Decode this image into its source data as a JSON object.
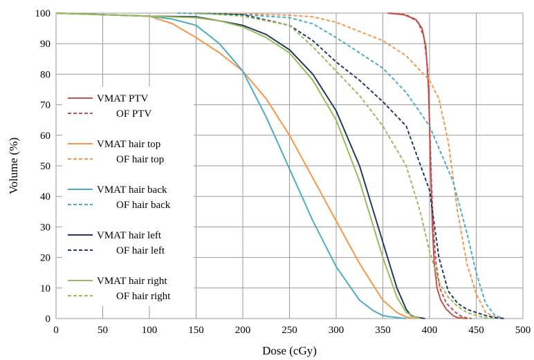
{
  "chart_data": {
    "type": "line",
    "title": "",
    "xlabel": "Dose (cGy)",
    "ylabel": "Volume (%)",
    "xlim": [
      0,
      500
    ],
    "ylim": [
      0,
      100
    ],
    "xticks": [
      0,
      50,
      100,
      150,
      200,
      250,
      300,
      350,
      400,
      450,
      500
    ],
    "yticks": [
      0,
      10,
      20,
      30,
      40,
      50,
      60,
      70,
      80,
      90,
      100
    ],
    "grid": true,
    "legend_position": "left-center",
    "series": [
      {
        "name": "VMAT PTV",
        "color": "#c0504d",
        "dash": "solid",
        "points": [
          [
            355,
            100
          ],
          [
            372,
            99.5
          ],
          [
            385,
            98
          ],
          [
            392,
            95
          ],
          [
            396,
            89
          ],
          [
            399,
            75
          ],
          [
            401,
            50
          ],
          [
            403,
            30
          ],
          [
            405,
            18
          ],
          [
            408,
            10
          ],
          [
            412,
            6
          ],
          [
            418,
            3
          ],
          [
            425,
            1
          ],
          [
            430,
            0.3
          ],
          [
            440,
            0
          ]
        ]
      },
      {
        "name": "OF PTV",
        "color": "#c0504d",
        "dash": "dashed",
        "points": [
          [
            358,
            100
          ],
          [
            375,
            99.5
          ],
          [
            388,
            97
          ],
          [
            394,
            92
          ],
          [
            398,
            82
          ],
          [
            400,
            65
          ],
          [
            402,
            45
          ],
          [
            404,
            30
          ],
          [
            407,
            18
          ],
          [
            411,
            10
          ],
          [
            418,
            5
          ],
          [
            428,
            2
          ],
          [
            435,
            0.5
          ],
          [
            445,
            0
          ]
        ]
      },
      {
        "name": "VMAT hair top",
        "color": "#f79646",
        "dash": "solid",
        "points": [
          [
            0,
            100
          ],
          [
            50,
            99.5
          ],
          [
            100,
            99
          ],
          [
            125,
            96.5
          ],
          [
            150,
            92
          ],
          [
            175,
            87
          ],
          [
            200,
            81
          ],
          [
            225,
            72
          ],
          [
            250,
            60
          ],
          [
            275,
            46
          ],
          [
            300,
            32
          ],
          [
            325,
            18
          ],
          [
            350,
            6
          ],
          [
            365,
            2
          ],
          [
            375,
            0.5
          ],
          [
            385,
            0
          ]
        ]
      },
      {
        "name": "OF hair top",
        "color": "#f79646",
        "dash": "dashed",
        "points": [
          [
            130,
            100
          ],
          [
            200,
            99.8
          ],
          [
            250,
            99.3
          ],
          [
            275,
            98.8
          ],
          [
            300,
            97
          ],
          [
            325,
            94
          ],
          [
            350,
            91
          ],
          [
            375,
            86
          ],
          [
            400,
            78
          ],
          [
            410,
            72
          ],
          [
            420,
            58
          ],
          [
            430,
            35
          ],
          [
            440,
            18
          ],
          [
            450,
            8
          ],
          [
            460,
            2
          ],
          [
            470,
            0.5
          ],
          [
            480,
            0
          ]
        ]
      },
      {
        "name": "VMAT hair back",
        "color": "#4bacc6",
        "dash": "solid",
        "points": [
          [
            0,
            100
          ],
          [
            50,
            99.5
          ],
          [
            100,
            99
          ],
          [
            125,
            98
          ],
          [
            150,
            96
          ],
          [
            175,
            90
          ],
          [
            200,
            81
          ],
          [
            225,
            66
          ],
          [
            250,
            49
          ],
          [
            275,
            32
          ],
          [
            300,
            17
          ],
          [
            325,
            6
          ],
          [
            340,
            2.5
          ],
          [
            350,
            1
          ],
          [
            360,
            0.5
          ],
          [
            375,
            0
          ]
        ]
      },
      {
        "name": "OF hair back",
        "color": "#4bacc6",
        "dash": "dashed",
        "points": [
          [
            130,
            100
          ],
          [
            200,
            99.5
          ],
          [
            250,
            98.5
          ],
          [
            275,
            96.5
          ],
          [
            300,
            92
          ],
          [
            325,
            87
          ],
          [
            350,
            82
          ],
          [
            375,
            74
          ],
          [
            400,
            63
          ],
          [
            425,
            45
          ],
          [
            440,
            28
          ],
          [
            450,
            15
          ],
          [
            460,
            5
          ],
          [
            470,
            1
          ],
          [
            480,
            0
          ]
        ]
      },
      {
        "name": "VMAT hair left",
        "color": "#1f3864",
        "dash": "solid",
        "points": [
          [
            0,
            100
          ],
          [
            50,
            99.5
          ],
          [
            100,
            99
          ],
          [
            150,
            98.8
          ],
          [
            175,
            97.5
          ],
          [
            200,
            96
          ],
          [
            225,
            93
          ],
          [
            250,
            88
          ],
          [
            275,
            80
          ],
          [
            300,
            68
          ],
          [
            325,
            50
          ],
          [
            350,
            25
          ],
          [
            365,
            10
          ],
          [
            375,
            3
          ],
          [
            380,
            1
          ],
          [
            385,
            0.5
          ],
          [
            395,
            0
          ]
        ]
      },
      {
        "name": "OF hair left",
        "color": "#1f3864",
        "dash": "dashed",
        "points": [
          [
            150,
            100
          ],
          [
            200,
            99.5
          ],
          [
            250,
            96
          ],
          [
            275,
            91
          ],
          [
            300,
            84
          ],
          [
            325,
            78
          ],
          [
            350,
            71
          ],
          [
            375,
            63
          ],
          [
            400,
            42
          ],
          [
            410,
            20
          ],
          [
            420,
            9
          ],
          [
            430,
            5
          ],
          [
            440,
            3
          ],
          [
            450,
            2
          ],
          [
            460,
            1
          ],
          [
            470,
            0.3
          ],
          [
            480,
            0
          ]
        ]
      },
      {
        "name": "VMAT hair right",
        "color": "#9bbb59",
        "dash": "solid",
        "points": [
          [
            0,
            100
          ],
          [
            50,
            99.5
          ],
          [
            100,
            99
          ],
          [
            150,
            98.5
          ],
          [
            175,
            97.5
          ],
          [
            200,
            95.5
          ],
          [
            225,
            92
          ],
          [
            250,
            87
          ],
          [
            275,
            78
          ],
          [
            300,
            65
          ],
          [
            325,
            45
          ],
          [
            350,
            20
          ],
          [
            365,
            7
          ],
          [
            375,
            2
          ],
          [
            385,
            0.5
          ],
          [
            390,
            0
          ]
        ]
      },
      {
        "name": "OF hair right",
        "color": "#9bbb59",
        "dash": "dashed",
        "points": [
          [
            150,
            100
          ],
          [
            200,
            99
          ],
          [
            250,
            96
          ],
          [
            275,
            89
          ],
          [
            300,
            81
          ],
          [
            325,
            73
          ],
          [
            350,
            63
          ],
          [
            375,
            50
          ],
          [
            390,
            35
          ],
          [
            400,
            22
          ],
          [
            410,
            12
          ],
          [
            420,
            7
          ],
          [
            430,
            4
          ],
          [
            440,
            2
          ],
          [
            450,
            1
          ],
          [
            460,
            0.3
          ],
          [
            470,
            0
          ]
        ]
      }
    ]
  }
}
